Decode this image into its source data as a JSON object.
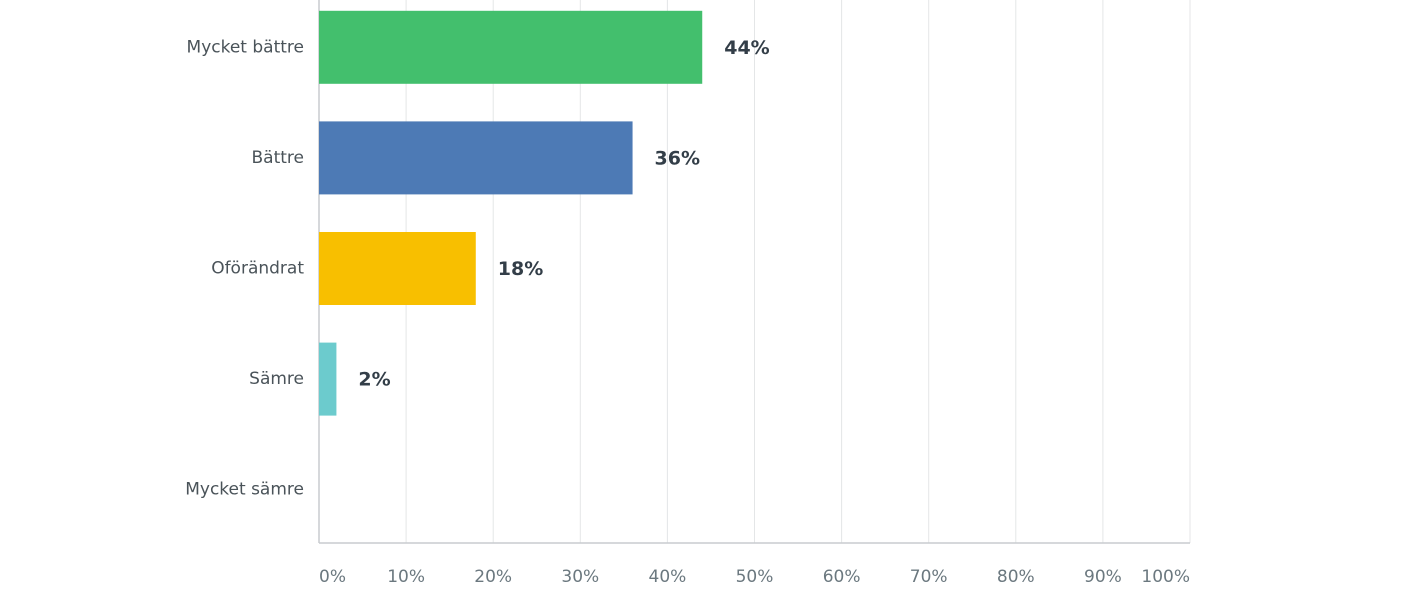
{
  "chart_data": {
    "type": "bar",
    "orientation": "horizontal",
    "categories": [
      "Mycket bättre",
      "Bättre",
      "Oförändrat",
      "Sämre",
      "Mycket sämre"
    ],
    "values": [
      44,
      36,
      18,
      2,
      0
    ],
    "value_labels": [
      "44%",
      "36%",
      "18%",
      "2%",
      null
    ],
    "colors": [
      "#43bf6d",
      "#4d7ab5",
      "#f8bf00",
      "#6ccbcd",
      "#999999"
    ],
    "xlim": [
      0,
      100
    ],
    "xticks": [
      {
        "value": 0,
        "label": "0%"
      },
      {
        "value": 10,
        "label": "10%"
      },
      {
        "value": 20,
        "label": "20%"
      },
      {
        "value": 30,
        "label": "30%"
      },
      {
        "value": 40,
        "label": "40%"
      },
      {
        "value": 50,
        "label": "50%"
      },
      {
        "value": 60,
        "label": "60%"
      },
      {
        "value": 70,
        "label": "70%"
      },
      {
        "value": 80,
        "label": "80%"
      },
      {
        "value": 90,
        "label": "90%"
      },
      {
        "value": 100,
        "label": "100%"
      }
    ],
    "grid": true
  }
}
